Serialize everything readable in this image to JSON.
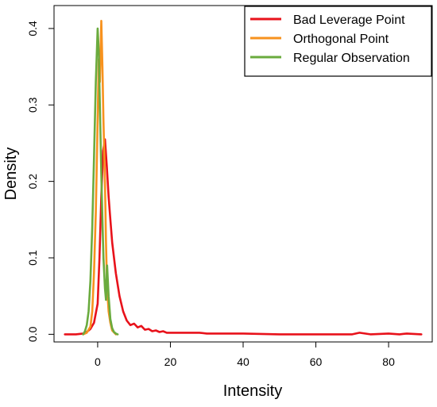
{
  "chart_data": {
    "type": "line",
    "title": "",
    "xlabel": "Intensity",
    "ylabel": "Density",
    "xlim": [
      -12,
      92
    ],
    "ylim": [
      -0.01,
      0.43
    ],
    "x_ticks": [
      0,
      20,
      40,
      60,
      80
    ],
    "x_tick_labels": [
      "0",
      "20",
      "40",
      "60",
      "80"
    ],
    "y_ticks": [
      0.0,
      0.1,
      0.2,
      0.3,
      0.4
    ],
    "y_tick_labels": [
      "0.0",
      "0.1",
      "0.2",
      "0.3",
      "0.4"
    ],
    "grid": false,
    "legend_position": "top-right",
    "series": [
      {
        "name": "Bad Leverage Point",
        "color": "#e8121b",
        "x": [
          -9,
          -6,
          -4,
          -3,
          -2,
          -1,
          0,
          0.5,
          1,
          1.5,
          2,
          2.5,
          3,
          3.5,
          4,
          5,
          6,
          7,
          8,
          9,
          10,
          11,
          12,
          13,
          14,
          15,
          16,
          17,
          18,
          19,
          20,
          22,
          25,
          28,
          30,
          35,
          40,
          50,
          60,
          70,
          72,
          75,
          80,
          83,
          85,
          89
        ],
        "y": [
          0.0,
          0.0,
          0.001,
          0.003,
          0.007,
          0.015,
          0.04,
          0.1,
          0.18,
          0.24,
          0.255,
          0.22,
          0.18,
          0.15,
          0.12,
          0.08,
          0.05,
          0.03,
          0.018,
          0.012,
          0.014,
          0.009,
          0.011,
          0.006,
          0.007,
          0.004,
          0.005,
          0.003,
          0.004,
          0.002,
          0.002,
          0.002,
          0.002,
          0.002,
          0.001,
          0.001,
          0.001,
          0.0,
          0.0,
          0.0,
          0.002,
          0.0,
          0.001,
          0.0,
          0.001,
          0.0
        ]
      },
      {
        "name": "Orthogonal Point",
        "color": "#f7921e",
        "x": [
          -4,
          -3,
          -2,
          -1.5,
          -1,
          -0.5,
          0,
          0.3,
          0.6,
          1,
          1.3,
          1.6,
          2,
          2.3,
          2.6,
          3,
          3.5,
          4,
          5
        ],
        "y": [
          0.0,
          0.002,
          0.01,
          0.03,
          0.08,
          0.16,
          0.28,
          0.36,
          0.33,
          0.41,
          0.35,
          0.28,
          0.2,
          0.12,
          0.06,
          0.03,
          0.015,
          0.005,
          0.0
        ]
      },
      {
        "name": "Regular Observation",
        "color": "#6aab3e",
        "x": [
          -4,
          -3.5,
          -3,
          -2.5,
          -2,
          -1.5,
          -1,
          -0.5,
          0,
          0.3,
          0.6,
          1,
          1.3,
          1.6,
          2,
          2.3,
          2.6,
          3,
          3.5,
          4,
          4.5,
          5,
          5.5
        ],
        "y": [
          0.0,
          0.004,
          0.012,
          0.03,
          0.07,
          0.14,
          0.23,
          0.33,
          0.4,
          0.37,
          0.3,
          0.21,
          0.15,
          0.1,
          0.06,
          0.045,
          0.09,
          0.05,
          0.02,
          0.008,
          0.003,
          0.001,
          0.0
        ]
      }
    ]
  }
}
